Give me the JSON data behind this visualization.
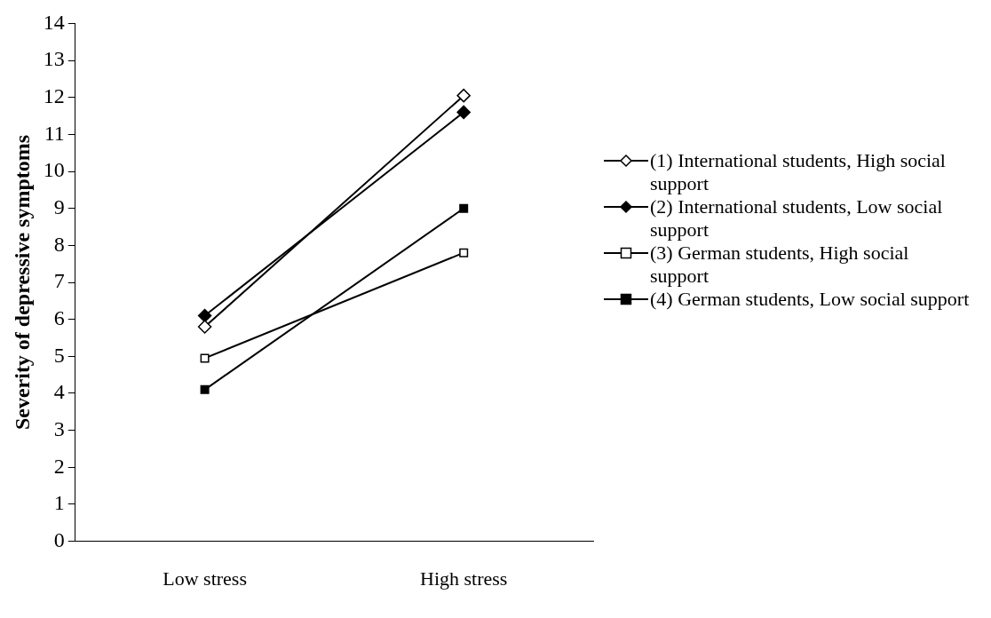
{
  "chart_data": {
    "type": "line",
    "ylabel": "Severity of depressive symptoms",
    "categories": [
      "Low stress",
      "High stress"
    ],
    "ylim": [
      0,
      14
    ],
    "yticks": [
      0,
      1,
      2,
      3,
      4,
      5,
      6,
      7,
      8,
      9,
      10,
      11,
      12,
      13,
      14
    ],
    "grid": false,
    "legend": "right",
    "line_style": "solid",
    "series": [
      {
        "name": "(1) International students, High social support",
        "color": "#000000",
        "marker": "diamond",
        "values": [
          5.8,
          12.05
        ]
      },
      {
        "name": "(2) International students, Low social support",
        "color": "#000000",
        "marker": "diamond",
        "values": [
          6.1,
          11.6
        ]
      },
      {
        "name": "(3) German students, High social support",
        "color": "#000000",
        "marker": "square",
        "values": [
          4.95,
          7.8
        ]
      },
      {
        "name": "(4) German students, Low social support",
        "color": "#000000",
        "marker": "square",
        "values": [
          4.1,
          9.0
        ]
      }
    ]
  }
}
